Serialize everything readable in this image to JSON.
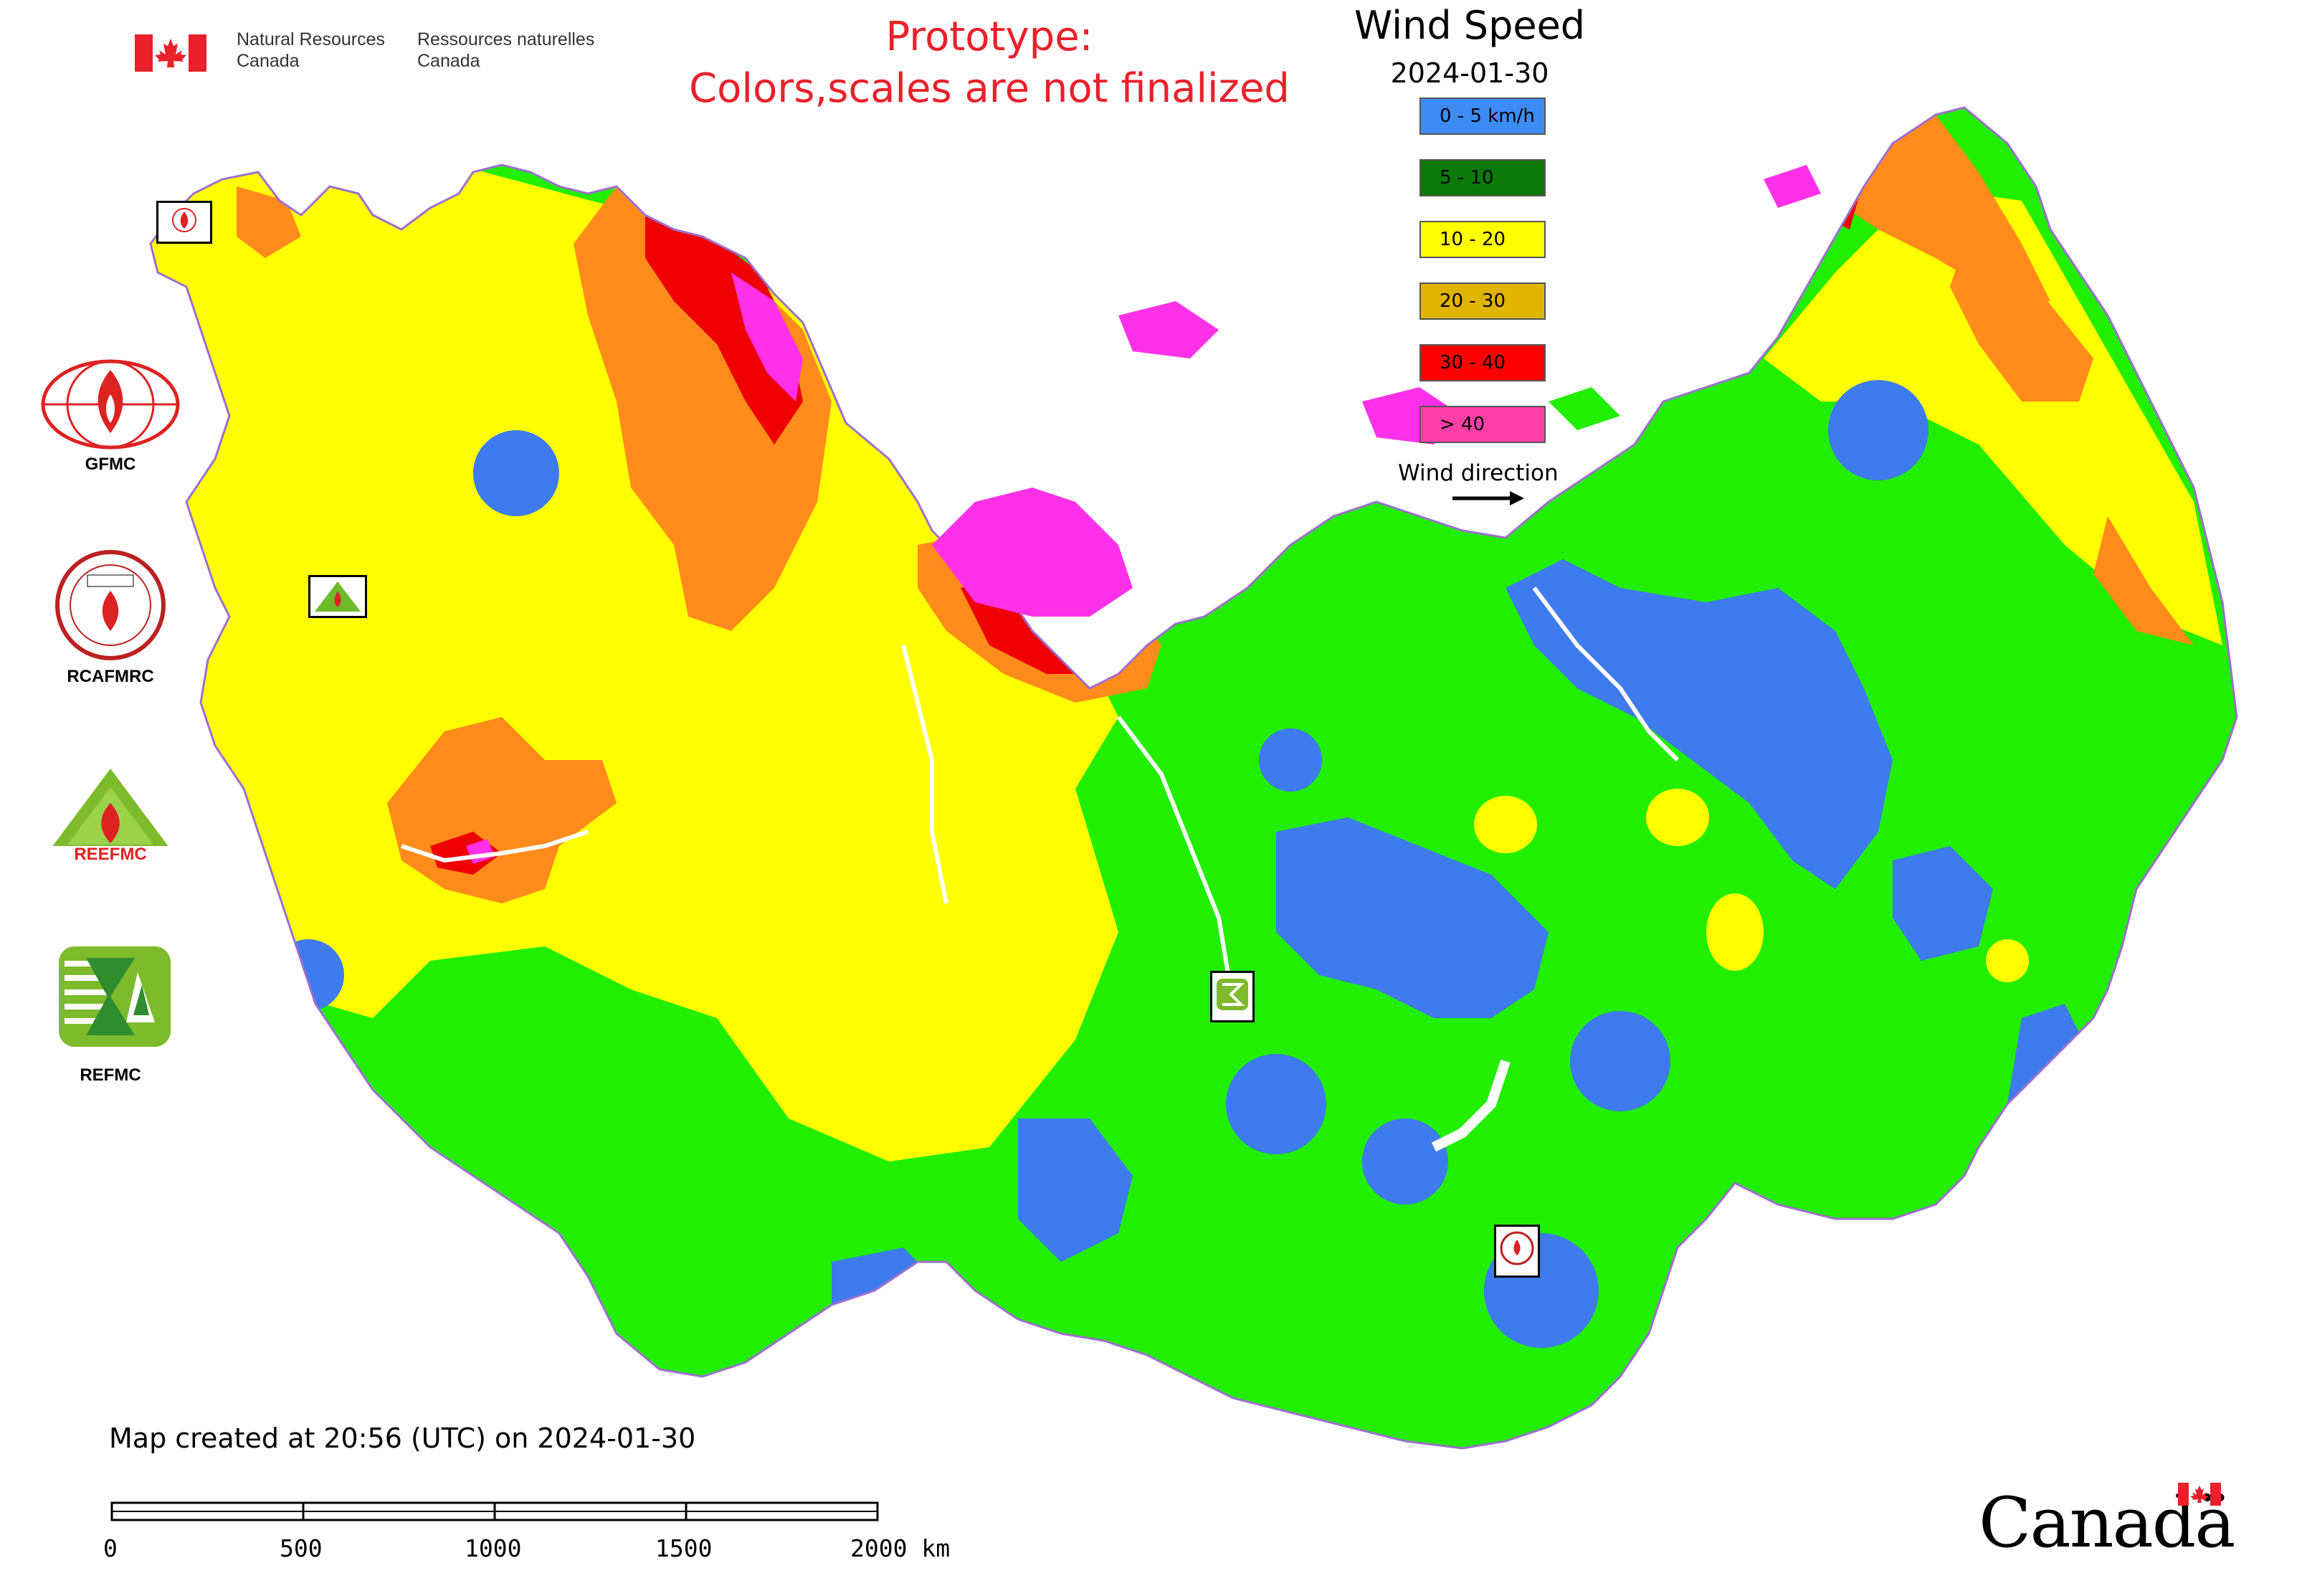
{
  "header": {
    "nrc_en_line1": "Natural Resources",
    "nrc_en_line2": "Canada",
    "nrc_fr_line1": "Ressources naturelles",
    "nrc_fr_line2": "Canada",
    "prototype_line1": "Prototype:",
    "prototype_line2": "Colors,scales are not finalized"
  },
  "legend": {
    "title": "Wind Speed",
    "date": "2024-01-30",
    "classes": [
      {
        "label": "0 - 5 km/h",
        "color": "#3d8cf5",
        "text_color": "#000000"
      },
      {
        "label": "5 - 10",
        "color": "#0b7a0b",
        "text_color": "#000000"
      },
      {
        "label": "10 - 20",
        "color": "#ffff00",
        "text_color": "#000000"
      },
      {
        "label": "20 - 30",
        "color": "#e0b400",
        "text_color": "#000000"
      },
      {
        "label": "30 - 40",
        "color": "#ff0000",
        "text_color": "#000000"
      },
      {
        "label": "> 40",
        "color": "#ff3fa8",
        "text_color": "#000000"
      }
    ],
    "wind_direction_label": "Wind direction"
  },
  "map_colors": {
    "calm": "#3d7bef",
    "light": "#22ee00",
    "moderate": "#ffff00",
    "fresh": "#ff8b1a",
    "strong": "#ee0000",
    "extreme": "#ff30e8"
  },
  "partners": {
    "gfmc": "GFMC",
    "rcafmrc": "RCAFMRC",
    "reefmc": "REEFMC",
    "refmc": "REFMC"
  },
  "footer": {
    "created": "Map created at 20:56 (UTC) on 2024-01-30",
    "scale_labels": [
      "0",
      "500",
      "1000",
      "1500",
      "2000 km"
    ],
    "wordmark": "Canadä"
  }
}
